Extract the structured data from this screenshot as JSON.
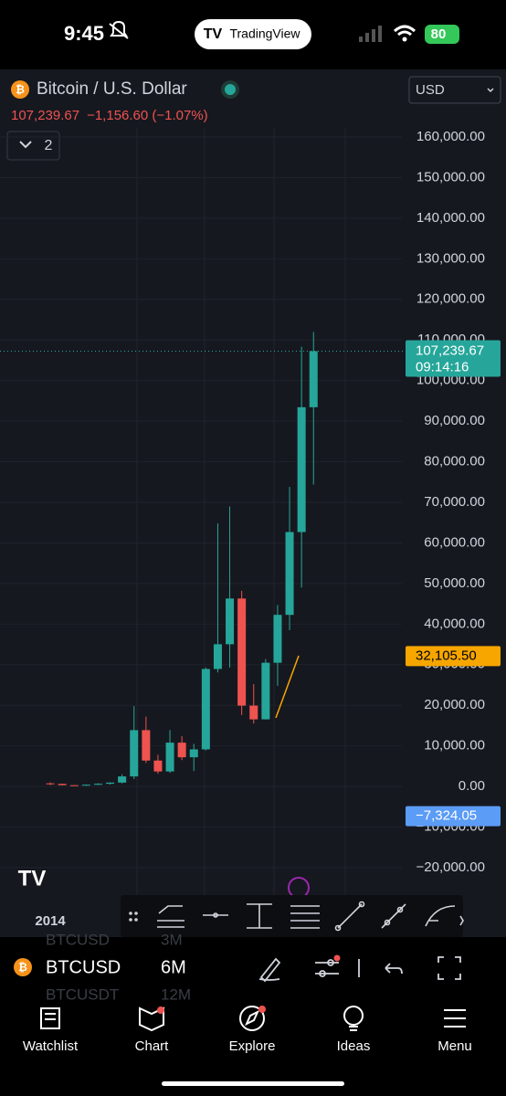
{
  "status_bar": {
    "time": "9:45",
    "app": "TradingView",
    "battery": "80"
  },
  "header": {
    "symbol_name": "Bitcoin / U.S. Dollar",
    "price": "107,239.67",
    "change": "−1,156.60 (−1.07%)",
    "indicators_count": "2",
    "currency": "USD"
  },
  "chart_data": {
    "type": "candlestick",
    "categories": [
      "2014",
      null,
      null,
      null,
      null,
      null,
      null,
      null,
      null,
      null,
      null,
      null,
      null,
      null,
      null,
      null,
      null,
      null,
      null,
      null,
      null,
      null,
      null
    ],
    "series": [
      {
        "open": [
          770,
          640,
          320,
          264,
          430,
          670,
          960,
          2480,
          13880,
          6390,
          3700,
          10800,
          7200,
          9140,
          28950,
          35040,
          46300,
          19920,
          16540,
          30480,
          42280,
          62680,
          93430
        ],
        "high": [
          1000,
          680,
          330,
          500,
          780,
          980,
          3000,
          19800,
          17200,
          7800,
          13900,
          12400,
          10500,
          29300,
          64800,
          69000,
          48200,
          25200,
          31400,
          44700,
          73800,
          108300,
          112000
        ],
        "low": [
          340,
          300,
          160,
          200,
          360,
          470,
          750,
          1830,
          5800,
          3150,
          3350,
          6500,
          3800,
          8900,
          28100,
          29300,
          17600,
          15500,
          16500,
          24800,
          38500,
          49000,
          74400
        ],
        "close": [
          640,
          320,
          264,
          430,
          670,
          960,
          2480,
          13880,
          6390,
          3700,
          10800,
          7200,
          9140,
          28950,
          35040,
          46300,
          19920,
          16540,
          30480,
          42280,
          62680,
          93430,
          107240
        ]
      }
    ],
    "up_color": "#26a69a",
    "down_color": "#ef5350",
    "ylim": [
      -29000,
      175750
    ],
    "yticks": [
      {
        "value": -20000,
        "label": "−20,000.00"
      },
      {
        "value": -10000,
        "label": "−10,000.00"
      },
      {
        "value": 0,
        "label": "0.00"
      },
      {
        "value": 10000,
        "label": "10,000.00"
      },
      {
        "value": 20000,
        "label": "20,000.00"
      },
      {
        "value": 30000,
        "label": "30,000.00"
      },
      {
        "value": 40000,
        "label": "40,000.00"
      },
      {
        "value": 50000,
        "label": "50,000.00"
      },
      {
        "value": 60000,
        "label": "60,000.00"
      },
      {
        "value": 70000,
        "label": "70,000.00"
      },
      {
        "value": 80000,
        "label": "80,000.00"
      },
      {
        "value": 90000,
        "label": "90,000.00"
      },
      {
        "value": 100000,
        "label": "100,000.00"
      },
      {
        "value": 110000,
        "label": "110,000.00"
      },
      {
        "value": 120000,
        "label": "120,000.00"
      },
      {
        "value": 130000,
        "label": "130,000.00"
      },
      {
        "value": 140000,
        "label": "140,000.00"
      },
      {
        "value": 150000,
        "label": "150,000.00"
      },
      {
        "value": 160000,
        "label": "160,000.00"
      }
    ],
    "grid": true,
    "price_tags": [
      {
        "value": 107239.67,
        "label": "107,239.67",
        "sublabel": "09:14:16",
        "color": "#26a69a"
      },
      {
        "value": 32105.5,
        "label": "32,105.50",
        "color": "#f7a600"
      },
      {
        "value": -7324.05,
        "label": "−7,324.05",
        "color": "#5b9cf6"
      }
    ]
  },
  "symbol_bar": {
    "symbol": "BTCUSD",
    "interval": "6M",
    "prev_symbol": "BTCUSD",
    "prev_interval": "3M",
    "next_symbol": "BTCUSDT",
    "next_interval": "12M"
  },
  "nav": {
    "items": [
      "Watchlist",
      "Chart",
      "Explore",
      "Ideas",
      "Menu"
    ]
  }
}
